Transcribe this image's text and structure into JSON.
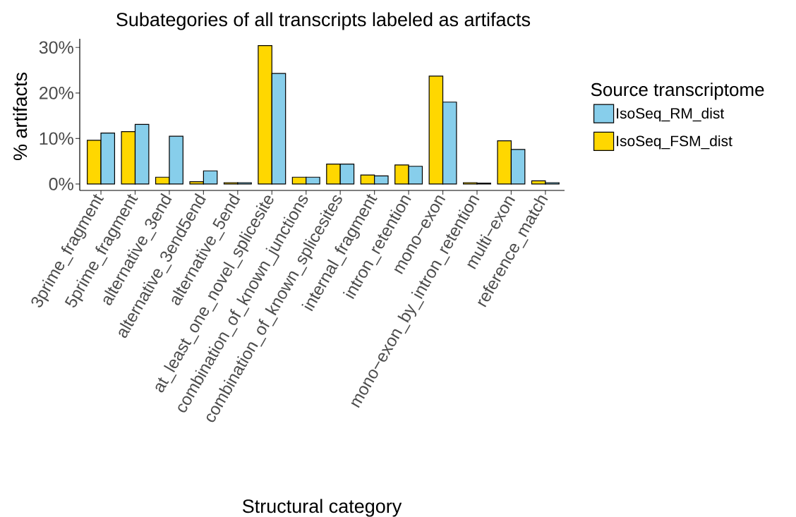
{
  "chart_data": {
    "type": "bar",
    "title": "Subategories of all transcripts labeled as artifacts",
    "xlabel": "Structural category",
    "ylabel": "% artifacts",
    "legend_title": "Source transcriptome",
    "categories": [
      "3prime_fragment",
      "5prime_fragment",
      "alternative_3end",
      "alternative_3end5end",
      "alternative_5end",
      "at_least_one_novel_splicesite",
      "combination_of_known_junctions",
      "combination_of_known_splicesites",
      "internal_fragment",
      "intron_retention",
      "mono−exon",
      "mono−exon_by_intron_retention",
      "multi−exon",
      "reference_match"
    ],
    "series": [
      {
        "name": "IsoSeq_FSM_dist",
        "color": "#ffd700",
        "values": [
          9.6,
          11.5,
          1.5,
          0.5,
          0.3,
          30.4,
          1.5,
          4.4,
          2.0,
          4.2,
          23.7,
          0.3,
          9.5,
          0.7
        ]
      },
      {
        "name": "IsoSeq_RM_dist",
        "color": "#87ceeb",
        "values": [
          11.2,
          13.1,
          10.5,
          2.9,
          0.3,
          24.3,
          1.5,
          4.4,
          1.8,
          3.9,
          18.0,
          0.2,
          7.6,
          0.3
        ]
      }
    ],
    "ylim": [
      -1.4,
      31.9
    ],
    "yticks": [
      {
        "value": 0,
        "label": "0%"
      },
      {
        "value": 10,
        "label": "10%"
      },
      {
        "value": 20,
        "label": "20%"
      },
      {
        "value": 30,
        "label": "30%"
      }
    ],
    "grid": false,
    "legend": "right"
  }
}
